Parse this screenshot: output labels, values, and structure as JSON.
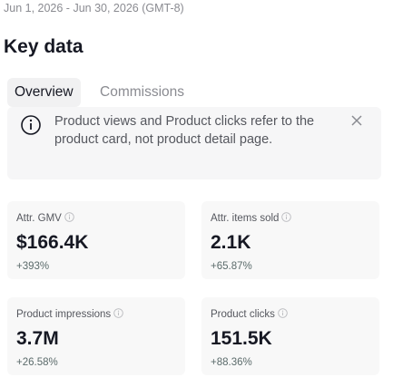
{
  "header": {
    "date_range": "Jun 1, 2026 - Jun 30, 2026 (GMT-8)",
    "title": "Key data"
  },
  "tabs": [
    "Overview",
    "Commissions"
  ],
  "notice": "Product views and Product clicks refer to the product card, not product detail page.",
  "metrics": [
    {
      "label": "Attr. GMV",
      "value": "$166.4K",
      "change": "+393%"
    },
    {
      "label": "Attr. items sold",
      "value": "2.1K",
      "change": "+65.87%"
    },
    {
      "label": "Product impressions",
      "value": "3.7M",
      "change": "+26.58%"
    },
    {
      "label": "Product clicks",
      "value": "151.5K",
      "change": "+88.36%"
    }
  ]
}
